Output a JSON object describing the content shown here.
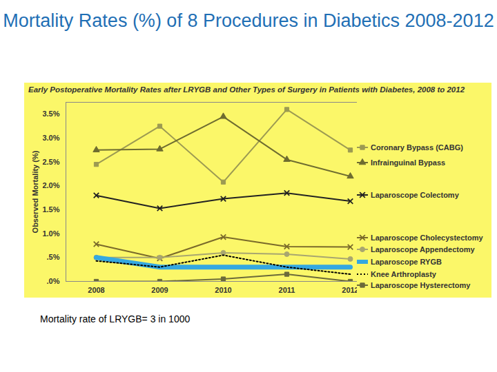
{
  "chart_data": {
    "type": "line",
    "title": "Mortality Rates (%) of 8 Procedures in Diabetics 2008-2012",
    "subtitle": "Early Postoperative Mortality Rates after LRYGB and Other Types of Surgery in Patients with Diabetes, 2008 to 2012",
    "ylabel": "Observed Mortality (%)",
    "annotations": [
      "Mortality rate of LRYGB= 3 in 1000"
    ],
    "categories": [
      "2008",
      "2009",
      "2010",
      "2011",
      "2012"
    ],
    "ylim": [
      0,
      3.75
    ],
    "yticks": [
      {
        "value": 0,
        "label": ".0%"
      },
      {
        "value": 0.5,
        "label": ".5%"
      },
      {
        "value": 1,
        "label": "1.0%"
      },
      {
        "value": 1.5,
        "label": "1.5%"
      },
      {
        "value": 2,
        "label": "2.0%"
      },
      {
        "value": 2.5,
        "label": "2.5%"
      },
      {
        "value": 3,
        "label": "3.0%"
      },
      {
        "value": 3.5,
        "label": "3.5%"
      }
    ],
    "grid": false,
    "legend": "right",
    "series": [
      {
        "name": "Coronary Bypass (CABG)",
        "color": "#9c9a52",
        "marker": "square",
        "line_style": "solid",
        "values": [
          2.45,
          3.25,
          2.08,
          3.6,
          2.75
        ]
      },
      {
        "name": "Infrainguinal Bypass",
        "color": "#6e6c30",
        "marker": "triangle",
        "line_style": "solid",
        "values": [
          2.75,
          2.77,
          3.45,
          2.55,
          2.2
        ]
      },
      {
        "name": "Laparoscope Colectomy",
        "color": "#222222",
        "marker": "times",
        "line_style": "solid",
        "values": [
          1.8,
          1.53,
          1.73,
          1.85,
          1.68
        ]
      },
      {
        "name": "Laparoscope Cholecystectomy",
        "color": "#7a6a2a",
        "marker": "times",
        "line_style": "solid",
        "values": [
          0.78,
          0.48,
          0.93,
          0.73,
          0.72
        ]
      },
      {
        "name": "Laparoscope Appendectomy",
        "color": "#a8a670",
        "marker": "circle",
        "line_style": "solid",
        "values": [
          0.5,
          0.5,
          0.6,
          0.57,
          0.47
        ]
      },
      {
        "name": "Laparoscope RYGB",
        "color": "#35a8e0",
        "marker": "none",
        "line_style": "thick",
        "values": [
          0.5,
          0.3,
          0.3,
          0.3,
          0.3
        ]
      },
      {
        "name": "Knee Arthroplasty",
        "color": "#000000",
        "marker": "none",
        "line_style": "dotted",
        "values": [
          0.43,
          0.3,
          0.55,
          0.3,
          0.15
        ]
      },
      {
        "name": "Laparoscope Hysterectomy",
        "color": "#6b6a3a",
        "marker": "square",
        "line_style": "solid",
        "values": [
          0.0,
          0.0,
          0.05,
          0.15,
          0.0
        ]
      }
    ]
  }
}
